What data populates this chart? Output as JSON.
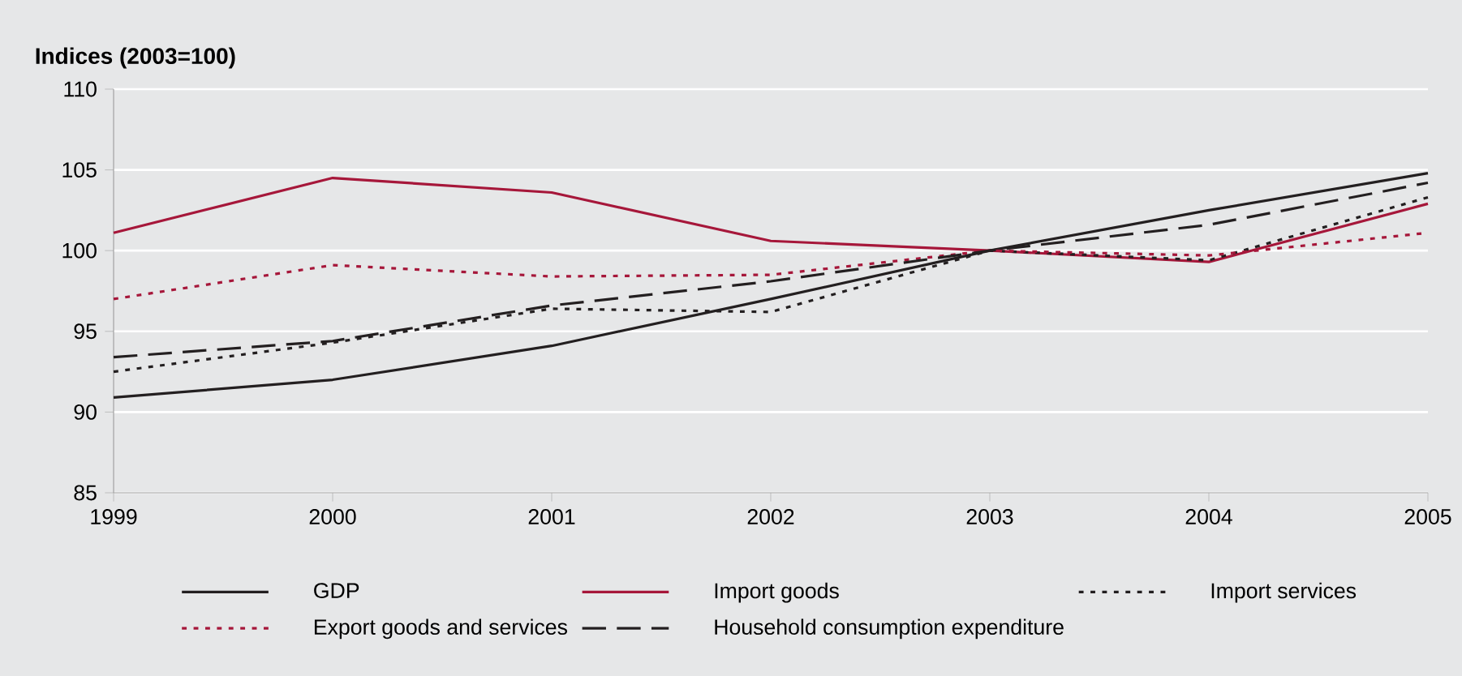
{
  "chart_data": {
    "type": "line",
    "ylabel": "Indices (2003=100)",
    "x": [
      1999,
      2000,
      2001,
      2002,
      2003,
      2004,
      2005
    ],
    "xlim": [
      1999,
      2005
    ],
    "xticks": [
      1999,
      2000,
      2001,
      2002,
      2003,
      2004,
      2005
    ],
    "ylim": [
      85,
      110
    ],
    "yticks": [
      85,
      90,
      95,
      100,
      105,
      110
    ],
    "grid": "y",
    "legend": "bottom",
    "series": [
      {
        "name": "GDP",
        "color": "#231f20",
        "line_style": "solid",
        "values": [
          90.9,
          92.0,
          94.1,
          97.0,
          100,
          102.5,
          104.8
        ]
      },
      {
        "name": "Import goods",
        "color": "#a6173a",
        "line_style": "solid",
        "values": [
          101.1,
          104.5,
          103.6,
          100.6,
          100,
          99.3,
          102.9
        ]
      },
      {
        "name": "Import services",
        "color": "#231f20",
        "line_style": "dotted",
        "values": [
          92.5,
          94.3,
          96.4,
          96.2,
          100,
          99.4,
          103.3
        ]
      },
      {
        "name": "Export goods and services",
        "color": "#a6173a",
        "line_style": "dotted",
        "values": [
          97.0,
          99.1,
          98.4,
          98.5,
          100,
          99.7,
          101.1
        ]
      },
      {
        "name": "Household consumption expenditure",
        "color": "#231f20",
        "line_style": "dashed",
        "values": [
          93.4,
          94.4,
          96.6,
          98.1,
          100,
          101.6,
          104.2
        ]
      }
    ]
  }
}
